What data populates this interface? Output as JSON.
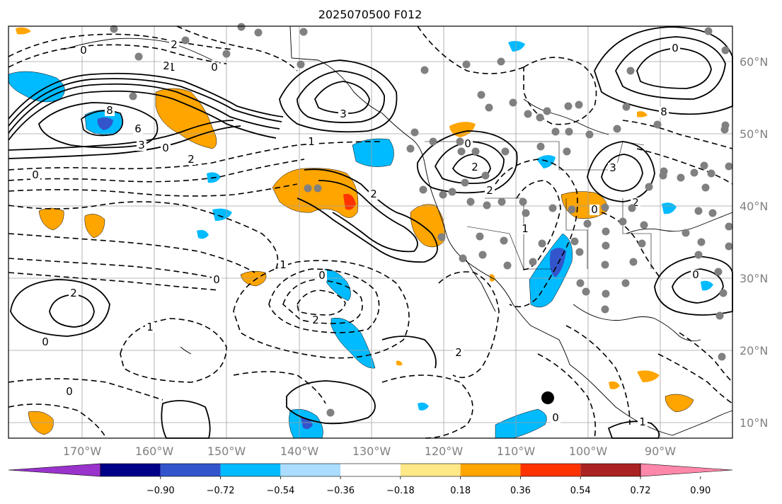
{
  "title": "2025070500 F012",
  "lat_labels": [
    "60°N",
    "50°N",
    "40°N",
    "30°N",
    "20°N",
    "10°N"
  ],
  "lon_labels": [
    "170°W",
    "160°W",
    "150°W",
    "140°W",
    "130°W",
    "120°W",
    "110°W",
    "100°W",
    "90°W"
  ],
  "colorbar": {
    "ticks": [
      "−0.90",
      "−0.72",
      "−0.54",
      "−0.36",
      "−0.18",
      "0.18",
      "0.36",
      "0.54",
      "0.72",
      "0.90"
    ],
    "colors": [
      "#9933cc",
      "#000088",
      "#3355cc",
      "#00bbff",
      "#aaddff",
      "#ffffff",
      "#ffe888",
      "#ffa500",
      "#ff3300",
      "#aa2222",
      "#ff88aa"
    ]
  },
  "contour_labels": [
    "0",
    "2",
    "0",
    "1",
    "2",
    "3",
    "8",
    "6",
    "3",
    "0",
    "2",
    "1",
    "0",
    "2",
    "3",
    "2",
    "0",
    "2",
    "3",
    "0",
    "8",
    "0",
    "2",
    "1",
    "0",
    "0",
    "2",
    "1",
    "2",
    "0",
    "0",
    "1",
    "0",
    "2",
    "1",
    "0"
  ],
  "colors": {
    "pos_contour": "#000000",
    "neg_contour": "#000000",
    "grid": "#a0a0a0",
    "station": "#808080",
    "marker": "#000000"
  }
}
